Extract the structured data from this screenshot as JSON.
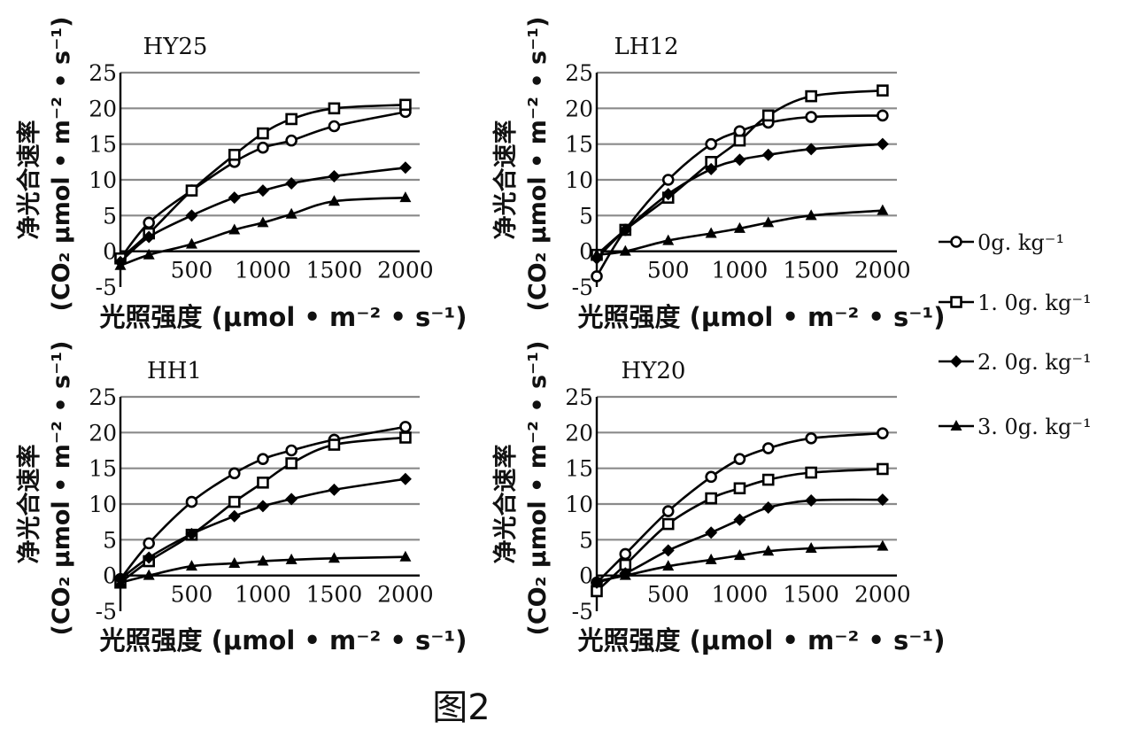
{
  "figure_caption": "图2",
  "legend": [
    {
      "label": "0g. kg⁻¹",
      "marker": "open-circle"
    },
    {
      "label": "1. 0g. kg⁻¹",
      "marker": "open-square"
    },
    {
      "label": "2. 0g. kg⁻¹",
      "marker": "filled-diamond"
    },
    {
      "label": "3. 0g. kg⁻¹",
      "marker": "filled-triangle"
    }
  ],
  "chart_data": [
    {
      "type": "line",
      "title": "HY25",
      "ylabel_main": "净光合速率",
      "ylabel_sub": "(CO₂ μmol • m⁻² • s⁻¹)",
      "xlabel": "光照强度 (μmol • m⁻² • s⁻¹)",
      "xlim": [
        0,
        2100
      ],
      "ylim": [
        -5,
        25
      ],
      "xticks": [
        500,
        1000,
        1500,
        2000
      ],
      "yticks": [
        -5,
        0,
        5,
        10,
        15,
        20,
        25
      ],
      "grid": true,
      "series": [
        {
          "legend_index": 0,
          "x": [
            0,
            200,
            500,
            800,
            1000,
            1200,
            1500,
            2000
          ],
          "y": [
            -1,
            4,
            8.5,
            12.5,
            14.5,
            15.5,
            17.5,
            19.5
          ]
        },
        {
          "legend_index": 1,
          "x": [
            0,
            200,
            500,
            800,
            1000,
            1200,
            1500,
            2000
          ],
          "y": [
            -1,
            2.5,
            8.5,
            13.5,
            16.5,
            18.5,
            20,
            20.5
          ]
        },
        {
          "legend_index": 2,
          "x": [
            0,
            200,
            500,
            800,
            1000,
            1200,
            1500,
            2000
          ],
          "y": [
            -1.5,
            2,
            5,
            7.5,
            8.5,
            9.5,
            10.5,
            11.7
          ]
        },
        {
          "legend_index": 3,
          "x": [
            0,
            200,
            500,
            800,
            1000,
            1200,
            1500,
            2000
          ],
          "y": [
            -2,
            -0.5,
            1,
            3,
            4,
            5.2,
            7,
            7.5
          ]
        }
      ]
    },
    {
      "type": "line",
      "title": "LH12",
      "ylabel_main": "净光合速率",
      "ylabel_sub": "(CO₂ μmol • m⁻² • s⁻¹)",
      "xlabel": "光照强度 (μmol • m⁻² • s⁻¹)",
      "xlim": [
        0,
        2100
      ],
      "ylim": [
        -5,
        25
      ],
      "xticks": [
        500,
        1000,
        1500,
        2000
      ],
      "yticks": [
        -5,
        0,
        5,
        10,
        15,
        20,
        25
      ],
      "grid": true,
      "series": [
        {
          "legend_index": 0,
          "x": [
            0,
            200,
            500,
            800,
            1000,
            1200,
            1500,
            2000
          ],
          "y": [
            -3.5,
            3,
            10,
            15,
            16.8,
            18,
            18.8,
            19
          ]
        },
        {
          "legend_index": 1,
          "x": [
            0,
            200,
            500,
            800,
            1000,
            1200,
            1500,
            2000
          ],
          "y": [
            -0.5,
            3,
            7.5,
            12.5,
            15.5,
            19,
            21.7,
            22.5
          ]
        },
        {
          "legend_index": 2,
          "x": [
            0,
            200,
            500,
            800,
            1000,
            1200,
            1500,
            2000
          ],
          "y": [
            -1,
            3,
            8,
            11.5,
            12.8,
            13.5,
            14.3,
            15
          ]
        },
        {
          "legend_index": 3,
          "x": [
            0,
            200,
            500,
            800,
            1000,
            1200,
            1500,
            2000
          ],
          "y": [
            -0.5,
            0,
            1.5,
            2.5,
            3.2,
            4,
            5,
            5.7
          ]
        }
      ]
    },
    {
      "type": "line",
      "title": "HH1",
      "ylabel_main": "净光合速率",
      "ylabel_sub": "(CO₂ μmol • m⁻² • s⁻¹)",
      "xlabel": "光照强度 (μmol • m⁻² • s⁻¹)",
      "xlim": [
        0,
        2100
      ],
      "ylim": [
        -5,
        25
      ],
      "xticks": [
        500,
        1000,
        1500,
        2000
      ],
      "yticks": [
        -5,
        0,
        5,
        10,
        15,
        20,
        25
      ],
      "grid": true,
      "series": [
        {
          "legend_index": 0,
          "x": [
            0,
            200,
            500,
            800,
            1000,
            1200,
            1500,
            2000
          ],
          "y": [
            -0.5,
            4.5,
            10.3,
            14.3,
            16.3,
            17.5,
            19,
            20.8
          ]
        },
        {
          "legend_index": 1,
          "x": [
            0,
            200,
            500,
            800,
            1000,
            1200,
            1500,
            2000
          ],
          "y": [
            -1,
            2,
            5.7,
            10.3,
            13,
            15.7,
            18.3,
            19.3
          ]
        },
        {
          "legend_index": 2,
          "x": [
            0,
            200,
            500,
            800,
            1000,
            1200,
            1500,
            2000
          ],
          "y": [
            -0.5,
            2.5,
            5.8,
            8.3,
            9.7,
            10.7,
            12,
            13.5
          ]
        },
        {
          "legend_index": 3,
          "x": [
            0,
            200,
            500,
            800,
            1000,
            1200,
            1500,
            2000
          ],
          "y": [
            -1,
            0,
            1.3,
            1.7,
            2,
            2.2,
            2.4,
            2.6
          ]
        }
      ]
    },
    {
      "type": "line",
      "title": "HY20",
      "ylabel_main": "净光合速率",
      "ylabel_sub": "(CO₂ μmol • m⁻² • s⁻¹)",
      "xlabel": "光照强度 (μmol • m⁻² • s⁻¹)",
      "xlim": [
        0,
        2100
      ],
      "ylim": [
        -5,
        25
      ],
      "xticks": [
        500,
        1000,
        1500,
        2000
      ],
      "yticks": [
        -5,
        0,
        5,
        10,
        15,
        20,
        25
      ],
      "grid": true,
      "series": [
        {
          "legend_index": 0,
          "x": [
            0,
            200,
            500,
            800,
            1000,
            1200,
            1500,
            2000
          ],
          "y": [
            -1,
            3,
            9,
            13.8,
            16.3,
            17.8,
            19.2,
            19.9
          ]
        },
        {
          "legend_index": 1,
          "x": [
            0,
            200,
            500,
            800,
            1000,
            1200,
            1500,
            2000
          ],
          "y": [
            -2.2,
            1.5,
            7.2,
            10.8,
            12.2,
            13.4,
            14.4,
            14.9
          ]
        },
        {
          "legend_index": 2,
          "x": [
            0,
            200,
            500,
            800,
            1000,
            1200,
            1500,
            2000
          ],
          "y": [
            -1,
            0.3,
            3.5,
            6,
            7.8,
            9.5,
            10.5,
            10.6
          ]
        },
        {
          "legend_index": 3,
          "x": [
            0,
            200,
            500,
            800,
            1000,
            1200,
            1500,
            2000
          ],
          "y": [
            -0.8,
            0,
            1.3,
            2.2,
            2.8,
            3.4,
            3.8,
            4.1
          ]
        }
      ]
    }
  ]
}
